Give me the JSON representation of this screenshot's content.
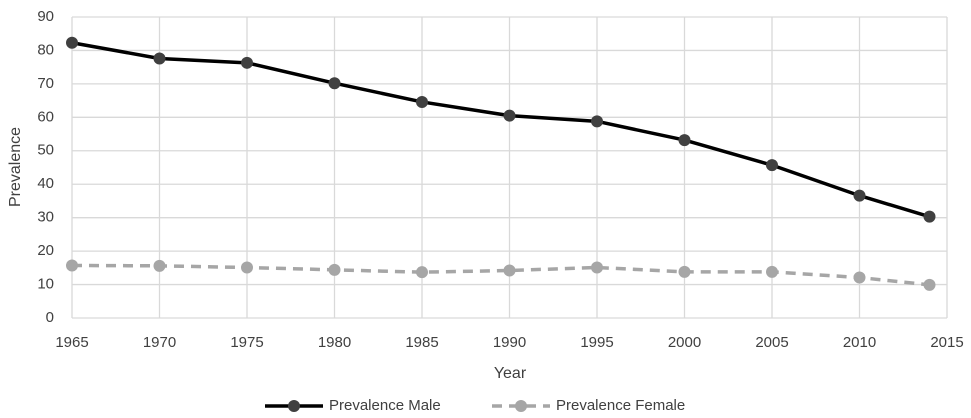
{
  "chart_data": {
    "type": "line",
    "x": [
      1965,
      1970,
      1975,
      1980,
      1985,
      1990,
      1995,
      2000,
      2005,
      2010,
      2014
    ],
    "series": [
      {
        "name": "Prevalence Male",
        "color": "#000000",
        "marker_color": "#404040",
        "dash": false,
        "values": [
          82.3,
          77.6,
          76.3,
          70.2,
          64.6,
          60.5,
          58.8,
          53.2,
          45.7,
          36.6,
          30.3
        ]
      },
      {
        "name": "Prevalence Female",
        "color": "#a6a6a6",
        "marker_color": "#a6a6a6",
        "dash": true,
        "values": [
          15.7,
          15.6,
          15.1,
          14.4,
          13.7,
          14.2,
          15.1,
          13.8,
          13.8,
          12.1,
          9.9
        ]
      }
    ],
    "xlabel": "Year",
    "ylabel": "Prevalence",
    "xlim": [
      1965,
      2015
    ],
    "xticks": [
      1965,
      1970,
      1975,
      1980,
      1985,
      1990,
      1995,
      2000,
      2005,
      2010,
      2015
    ],
    "ylim": [
      0,
      90
    ],
    "yticks": [
      0,
      10,
      20,
      30,
      40,
      50,
      60,
      70,
      80,
      90
    ],
    "grid": true,
    "legend": "bottom"
  }
}
